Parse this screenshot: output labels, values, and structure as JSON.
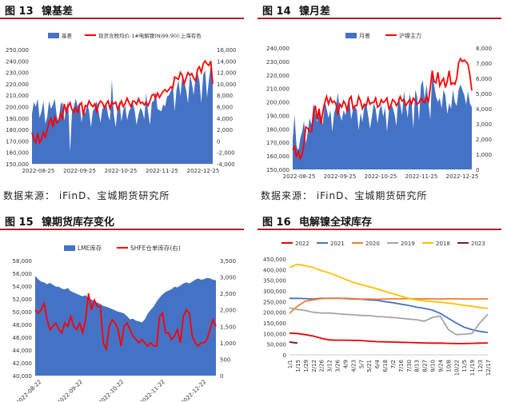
{
  "panels": [
    {
      "id": "p13",
      "fig_num": "图 13",
      "fig_title": "镍基差",
      "source": "数据来源：  iFinD、宝城期货研究所"
    },
    {
      "id": "p14",
      "fig_num": "图 14",
      "fig_title": "镍月差",
      "source": "数据来源：  iFinD、宝城期货研究所"
    },
    {
      "id": "p15",
      "fig_num": "图 15",
      "fig_title": "镍期货库存变化",
      "source": ""
    },
    {
      "id": "p16",
      "fig_num": "图 16",
      "fig_title": "电解镍全球库存",
      "source": ""
    }
  ],
  "colors": {
    "area": "#4472c4",
    "red": "#ff0000",
    "s2022": "#e8000b",
    "s2021": "#4472c4",
    "s2020": "#ed7d31",
    "s2019": "#a5a5a5",
    "s2018": "#ffc000",
    "s2023": "#7b1e2e"
  },
  "chart_data": [
    {
      "id": "p13",
      "type": "area+line",
      "series": [
        {
          "name": "基差",
          "axis": "left",
          "kind": "area"
        },
        {
          "name": "现货含税均价:1#电解镍(Ni99.90):上海有色",
          "axis": "right",
          "kind": "line"
        }
      ],
      "left_ticks": [
        "250,000",
        "240,000",
        "230,000",
        "220,000",
        "210,000",
        "200,000",
        "190,000",
        "180,000",
        "170,000",
        "160,000",
        "150,000"
      ],
      "right_ticks": [
        "16,000",
        "14,000",
        "12,000",
        "10,000",
        "8,000",
        "6,000",
        "4,000",
        "2,000",
        "0",
        "-2,000",
        "-4,000"
      ],
      "x_ticks": [
        "2022-08-25",
        "2022-09-25",
        "2022-10-25",
        "2022-11-25",
        "2022-12-25"
      ],
      "left_range": [
        150000,
        250000
      ],
      "right_range": [
        -4000,
        16000
      ],
      "area_values": [
        194000,
        204000,
        200000,
        207000,
        190000,
        196000,
        205000,
        185000,
        191000,
        205000,
        198000,
        202000,
        207000,
        192000,
        186000,
        202000,
        204000,
        188000,
        199000,
        205000,
        160000,
        195000,
        200000,
        207000,
        200000,
        204000,
        186000,
        198000,
        194000,
        203000,
        196000,
        182000,
        196000,
        199000,
        205000,
        196000,
        186000,
        198000,
        199000,
        204000,
        192000,
        188000,
        224000,
        193000,
        182000,
        199000,
        205000,
        187000,
        197000,
        201000,
        188000,
        196000,
        199000,
        204000,
        196000,
        184000,
        193000,
        199000,
        196000,
        189000,
        212000,
        196000,
        184000,
        204000,
        205000,
        213000,
        198000,
        197000,
        196000,
        202000,
        200000,
        209000,
        210000,
        214000,
        220000,
        196000,
        215000,
        223000,
        209000,
        226000,
        222000,
        215000,
        203000,
        228000,
        221000,
        210000,
        226000,
        230000,
        223000,
        203000,
        228000,
        232000,
        208000,
        223000,
        237000,
        226000
      ],
      "line_values": [
        1500,
        300,
        -300,
        1400,
        -300,
        300,
        1500,
        700,
        2000,
        3300,
        4000,
        2500,
        4200,
        3200,
        3400,
        4800,
        4000,
        6500,
        5000,
        6000,
        6700,
        5500,
        5000,
        5800,
        5000,
        6300,
        6700,
        4500,
        6200,
        6000,
        7000,
        6400,
        6000,
        6500,
        5200,
        6400,
        7000,
        6700,
        5800,
        6500,
        7000,
        5700,
        6800,
        6500,
        6800,
        5500,
        6200,
        7000,
        6000,
        6600,
        7500,
        6700,
        6000,
        7000,
        6900,
        6400,
        7400,
        6600,
        6800,
        6300,
        6800,
        6200,
        7000,
        8000,
        8200,
        7500,
        8400,
        7600,
        8200,
        8700,
        9000,
        8600,
        9000,
        9500,
        9200,
        11200,
        11000,
        10800,
        12000,
        11500,
        10000,
        11000,
        12000,
        11500,
        11800,
        11000,
        10500,
        12500,
        13000,
        12000,
        13500,
        14000,
        13500,
        13200,
        14000,
        10000
      ]
    },
    {
      "id": "p14",
      "type": "area+line",
      "series": [
        {
          "name": "月差",
          "axis": "left",
          "kind": "area"
        },
        {
          "name": "沪镍主力",
          "axis": "right",
          "kind": "line"
        }
      ],
      "left_ticks": [
        "240,000",
        "230,000",
        "220,000",
        "210,000",
        "200,000",
        "190,000",
        "180,000",
        "170,000",
        "160,000",
        "150,000"
      ],
      "right_ticks": [
        "8,000",
        "7,000",
        "6,000",
        "5,000",
        "4,000",
        "3,000",
        "2,000",
        "1,000",
        "0"
      ],
      "x_ticks": [
        "2022-08-25",
        "2022-09-25",
        "2022-10-25",
        "2022-11-25",
        "2022-12-25"
      ],
      "left_range": [
        150000,
        240000
      ],
      "right_range": [
        0,
        8000
      ],
      "area_values": [
        172000,
        190000,
        168000,
        163000,
        173000,
        178000,
        186000,
        169000,
        178000,
        188000,
        183000,
        199000,
        192000,
        185000,
        196000,
        190000,
        183000,
        201000,
        195000,
        188000,
        194000,
        178000,
        192000,
        197000,
        207000,
        191000,
        186000,
        194000,
        190000,
        198000,
        204000,
        187000,
        195000,
        197000,
        194000,
        179000,
        192000,
        185000,
        197000,
        199000,
        190000,
        180000,
        189000,
        199000,
        195000,
        184000,
        194000,
        198000,
        189000,
        196000,
        178000,
        193000,
        199000,
        196000,
        191000,
        182000,
        204000,
        199000,
        190000,
        208000,
        198000,
        188000,
        206000,
        200000,
        180000,
        209000,
        204000,
        186000,
        212000,
        216000,
        202000,
        213000,
        199000,
        187000,
        222000,
        213000,
        204000,
        200000,
        203000,
        195000,
        209000,
        205000,
        191000,
        199000,
        195000,
        209000,
        200000,
        197000,
        209000,
        213000,
        209000,
        205000,
        198000,
        208000,
        199000,
        196000
      ],
      "line_values": [
        1300,
        1500,
        800,
        1200,
        700,
        1000,
        1700,
        2800,
        2700,
        2500,
        2500,
        3600,
        4200,
        3300,
        4000,
        3000,
        3800,
        4400,
        4800,
        4300,
        4700,
        4400,
        4500,
        4300,
        3600,
        4300,
        4100,
        4500,
        4300,
        3800,
        4600,
        4800,
        4000,
        4200,
        4200,
        4800,
        4500,
        4000,
        4300,
        4200,
        4700,
        4300,
        4400,
        4400,
        4700,
        4100,
        4200,
        4600,
        4400,
        4500,
        4700,
        4000,
        4200,
        4600,
        4500,
        4200,
        4400,
        4800,
        4500,
        4600,
        4200,
        4400,
        4600,
        4300,
        4700,
        4500,
        4300,
        4400,
        4700,
        4500,
        4400,
        4800,
        4500,
        5400,
        6500,
        5800,
        5700,
        6400,
        5500,
        5800,
        6000,
        5400,
        5800,
        6500,
        5600,
        5700,
        5600,
        6000,
        7000,
        7300,
        7100,
        7200,
        7100,
        6900,
        6200,
        5200
      ]
    },
    {
      "id": "p15",
      "type": "area+line",
      "series": [
        {
          "name": "LME库存",
          "axis": "left",
          "kind": "area"
        },
        {
          "name": "SHFE仓单库存(右)",
          "axis": "right",
          "kind": "line"
        }
      ],
      "left_ticks": [
        "58,000",
        "56,000",
        "54,000",
        "52,000",
        "50,000",
        "48,000",
        "46,000",
        "44,000",
        "42,000",
        "40,000"
      ],
      "right_ticks": [
        "3,500",
        "3,000",
        "2,500",
        "2,000",
        "1,500",
        "1,000",
        "500",
        "0"
      ],
      "x_ticks": [
        "2022-08-22",
        "2022-09-22",
        "2022-10-22",
        "2022-11-22",
        "2022-12-22"
      ],
      "left_range": [
        40000,
        58000
      ],
      "right_range": [
        0,
        3500
      ],
      "area_values": [
        55600,
        55100,
        54700,
        54600,
        54300,
        54500,
        54200,
        53900,
        53900,
        53600,
        53500,
        53700,
        53200,
        53000,
        52800,
        52600,
        52400,
        52600,
        52100,
        51900,
        51600,
        51400,
        51200,
        50900,
        50800,
        50600,
        50400,
        50200,
        50000,
        49900,
        49700,
        49300,
        48800,
        48900,
        48600,
        48500,
        48300,
        48800,
        49700,
        50300,
        50800,
        51600,
        52200,
        52700,
        53100,
        53300,
        53500,
        53900,
        53800,
        54100,
        54400,
        54600,
        54400,
        54700,
        55000,
        55200,
        55000,
        55100,
        55300,
        55200,
        55000,
        54900
      ],
      "line_values": [
        2000,
        1900,
        2000,
        2200,
        1700,
        1400,
        1500,
        1600,
        1400,
        1300,
        1600,
        1500,
        1800,
        1500,
        1400,
        1600,
        1300,
        1700,
        2500,
        2000,
        2300,
        2100,
        2100,
        1000,
        800,
        1500,
        1700,
        1600,
        1400,
        900,
        1500,
        1600,
        1400,
        1200,
        1100,
        1000,
        1100,
        1000,
        900,
        1000,
        900,
        900,
        1800,
        1900,
        1300,
        1300,
        1100,
        1200,
        1400,
        1000,
        1800,
        2000,
        1900,
        1200,
        1000,
        900,
        1000,
        1000,
        1100,
        1400,
        1700,
        1500
      ]
    },
    {
      "id": "p16",
      "type": "line",
      "series": [
        {
          "name": "2022",
          "key": "s2022"
        },
        {
          "name": "2021",
          "key": "s2021"
        },
        {
          "name": "2020",
          "key": "s2020"
        },
        {
          "name": "2019",
          "key": "s2019"
        },
        {
          "name": "2018",
          "key": "s2018"
        },
        {
          "name": "2023",
          "key": "s2023"
        }
      ],
      "left_ticks": [
        "450,000",
        "400,000",
        "350,000",
        "300,000",
        "250,000",
        "200,000",
        "150,000",
        "100,000",
        "50,000",
        "0"
      ],
      "x_ticks": [
        "1/1",
        "1/15",
        "1/29",
        "2/12",
        "2/26",
        "3/12",
        "3/26",
        "4/9",
        "4/23",
        "5/7",
        "5/21",
        "6/4",
        "6/18",
        "7/2",
        "7/16",
        "7/30",
        "8/13",
        "8/27",
        "9/10",
        "9/24",
        "10/8",
        "10/22",
        "11/5",
        "11/19",
        "12/3",
        "12/17"
      ],
      "y_range": [
        0,
        450000
      ],
      "values": {
        "2022": [
          102000,
          100000,
          95000,
          88000,
          78000,
          70000,
          69000,
          69000,
          68000,
          67000,
          64000,
          62000,
          61000,
          60000,
          59000,
          58000,
          57000,
          56000,
          55000,
          55000,
          54000,
          53000,
          53000,
          54000,
          55000,
          56000
        ],
        "2021": [
          265000,
          265000,
          264000,
          262000,
          266000,
          265000,
          266000,
          264000,
          262000,
          261000,
          258000,
          256000,
          250000,
          245000,
          238000,
          232000,
          224000,
          218000,
          210000,
          195000,
          172000,
          150000,
          130000,
          118000,
          110000,
          105000
        ],
        "2020": [
          195000,
          228000,
          252000,
          258000,
          264000,
          266000,
          265000,
          266000,
          264000,
          262000,
          262000,
          261000,
          262000,
          263000,
          263000,
          264000,
          263000,
          263000,
          263000,
          262000,
          263000,
          263000,
          262000,
          262000,
          262000,
          263000
        ],
        "2019": [
          220000,
          213000,
          208000,
          200000,
          196000,
          196000,
          193000,
          190000,
          188000,
          185000,
          184000,
          180000,
          178000,
          175000,
          172000,
          168000,
          165000,
          158000,
          175000,
          182000,
          120000,
          95000,
          97000,
          100000,
          150000,
          190000
        ],
        "2018": [
          410000,
          425000,
          418000,
          410000,
          395000,
          385000,
          370000,
          355000,
          340000,
          330000,
          320000,
          310000,
          298000,
          287000,
          276000,
          265000,
          258000,
          254000,
          250000,
          247000,
          243000,
          238000,
          232000,
          228000,
          222000,
          218000
        ],
        "2023": [
          60000,
          55000,
          null,
          null,
          null,
          null,
          null,
          null,
          null,
          null,
          null,
          null,
          null,
          null,
          null,
          null,
          null,
          null,
          null,
          null,
          null,
          null,
          null,
          null,
          null,
          null
        ]
      }
    }
  ]
}
